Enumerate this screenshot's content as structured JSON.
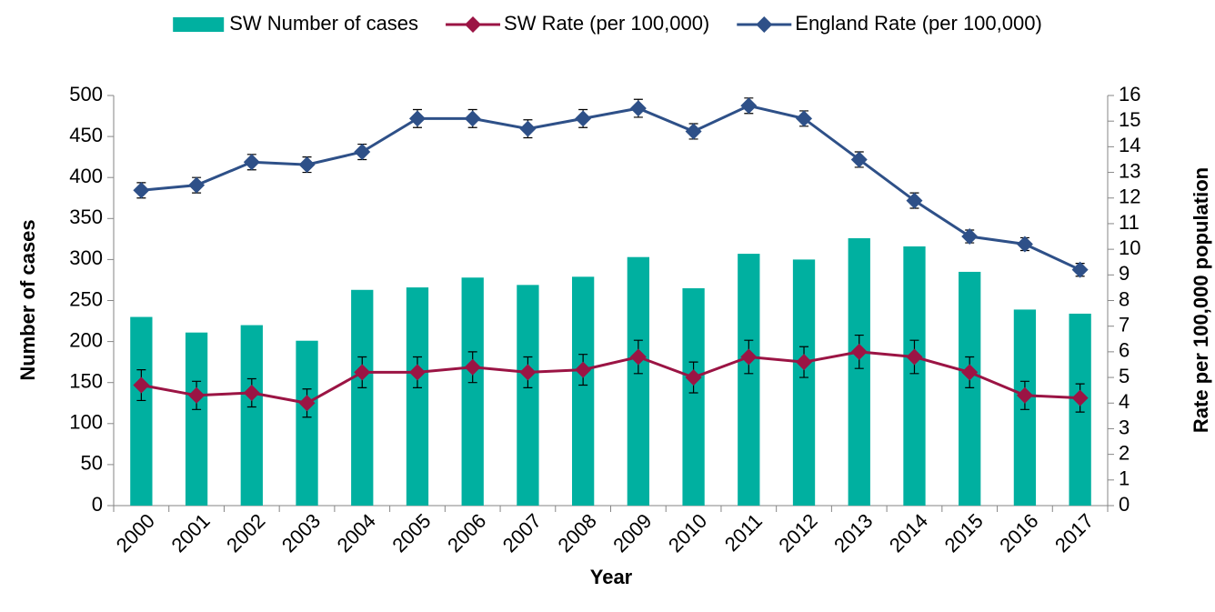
{
  "chart_data": {
    "type": "combo",
    "x_label": "Year",
    "y_label": "Number of cases",
    "y2_label": "Rate per 100,000 population",
    "categories": [
      "2000",
      "2001",
      "2002",
      "2003",
      "2004",
      "2005",
      "2006",
      "2007",
      "2008",
      "2009",
      "2010",
      "2011",
      "2012",
      "2013",
      "2014",
      "2015",
      "2016",
      "2017"
    ],
    "ylim": [
      0,
      500
    ],
    "yticks": [
      0,
      50,
      100,
      150,
      200,
      250,
      300,
      350,
      400,
      450,
      500
    ],
    "y2lim": [
      0,
      16
    ],
    "y2ticks": [
      0,
      1,
      2,
      3,
      4,
      5,
      6,
      7,
      8,
      9,
      10,
      11,
      12,
      13,
      14,
      15,
      16
    ],
    "legend": "top",
    "series": [
      {
        "name": "SW Number of cases",
        "type": "bar",
        "color": "#00b0a0",
        "values": [
          230,
          211,
          220,
          201,
          263,
          266,
          278,
          269,
          279,
          303,
          265,
          307,
          300,
          326,
          316,
          285,
          239,
          234
        ]
      },
      {
        "name": "SW Rate (per 100,000)",
        "type": "line",
        "axis": "y2",
        "color": "#9b1444",
        "values": [
          4.7,
          4.3,
          4.4,
          4.0,
          5.2,
          5.2,
          5.4,
          5.2,
          5.3,
          5.8,
          5.0,
          5.8,
          5.6,
          6.0,
          5.8,
          5.2,
          4.3,
          4.2
        ],
        "errors": [
          0.6,
          0.55,
          0.55,
          0.55,
          0.6,
          0.6,
          0.6,
          0.6,
          0.6,
          0.65,
          0.6,
          0.65,
          0.6,
          0.65,
          0.65,
          0.6,
          0.55,
          0.55
        ]
      },
      {
        "name": "England Rate (per 100,000)",
        "type": "line",
        "axis": "y2",
        "color": "#2e5088",
        "values": [
          12.3,
          12.5,
          13.4,
          13.3,
          13.8,
          15.1,
          15.1,
          14.7,
          15.1,
          15.5,
          14.6,
          15.6,
          15.1,
          13.5,
          11.9,
          10.5,
          10.2,
          9.2
        ],
        "errors": [
          0.3,
          0.3,
          0.3,
          0.3,
          0.3,
          0.35,
          0.35,
          0.35,
          0.35,
          0.35,
          0.3,
          0.3,
          0.3,
          0.3,
          0.3,
          0.25,
          0.25,
          0.25
        ]
      }
    ]
  }
}
